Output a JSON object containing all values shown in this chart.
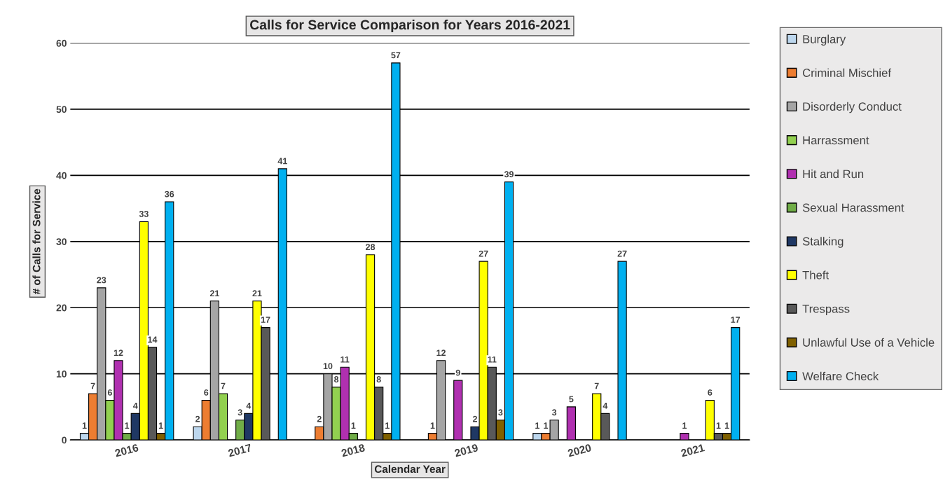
{
  "chart_data": {
    "type": "bar",
    "title": "Calls for Service Comparison for Years 2016-2021",
    "xlabel": "Calendar Year",
    "ylabel": "# of Calls for Service",
    "categories": [
      "2016",
      "2017",
      "2018",
      "2019",
      "2020",
      "2021"
    ],
    "series": [
      {
        "name": "Burglary",
        "color": "#bdd7ee",
        "values": [
          1,
          2,
          null,
          null,
          1,
          null
        ]
      },
      {
        "name": "Criminal Mischief",
        "color": "#ed7d31",
        "values": [
          7,
          6,
          2,
          1,
          1,
          null
        ]
      },
      {
        "name": "Disorderly Conduct",
        "color": "#a5a5a5",
        "values": [
          23,
          21,
          10,
          12,
          3,
          null
        ]
      },
      {
        "name": "Harrassment",
        "color": "#92d050",
        "values": [
          6,
          7,
          8,
          null,
          null,
          null
        ]
      },
      {
        "name": "Hit and Run",
        "color": "#b030b0",
        "values": [
          12,
          null,
          11,
          9,
          5,
          1
        ]
      },
      {
        "name": "Sexual Harassment",
        "color": "#70ad47",
        "values": [
          1,
          3,
          1,
          null,
          null,
          null
        ]
      },
      {
        "name": "Stalking",
        "color": "#1f3864",
        "values": [
          4,
          4,
          null,
          2,
          null,
          null
        ]
      },
      {
        "name": "Theft",
        "color": "#ffff00",
        "values": [
          33,
          21,
          28,
          27,
          7,
          6
        ]
      },
      {
        "name": "Trespass",
        "color": "#595959",
        "values": [
          14,
          17,
          8,
          11,
          4,
          1
        ]
      },
      {
        "name": "Unlawful Use of a Vehicle",
        "color": "#7f6000",
        "values": [
          1,
          null,
          1,
          3,
          null,
          1
        ]
      },
      {
        "name": "Welfare Check",
        "color": "#00b0f0",
        "values": [
          36,
          41,
          57,
          39,
          27,
          17
        ]
      }
    ],
    "ylim": [
      0,
      60
    ],
    "yticks": [
      0,
      10,
      20,
      30,
      40,
      50,
      60
    ],
    "grid": "y",
    "legend": "right",
    "data_labels": true
  }
}
